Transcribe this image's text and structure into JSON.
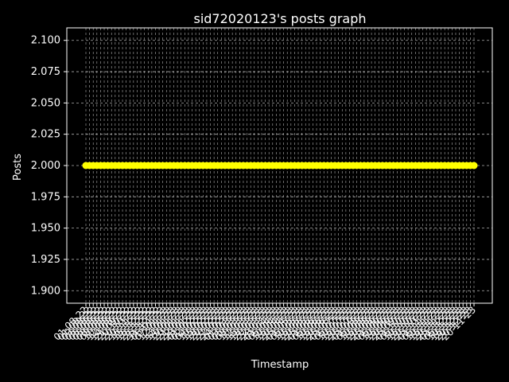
{
  "chart_data": {
    "type": "line",
    "title": "sid72020123's posts graph",
    "xlabel": "Timestamp",
    "ylabel": "Posts",
    "ylim": [
      1.89,
      2.11
    ],
    "yticks": [
      "1.900",
      "1.925",
      "1.950",
      "1.975",
      "2.000",
      "2.025",
      "2.050",
      "2.075",
      "2.100"
    ],
    "grid": true,
    "colors": {
      "background": "#000000",
      "foreground": "#ffffff",
      "grid": "#b0b0b0",
      "series": "#ffff00"
    },
    "x": [
      "01-08-22",
      "01-08-22",
      "03-08-22",
      "05-08-22",
      "05-08-22",
      "05-08-22",
      "08-08-22",
      "08-08-22",
      "10-08-22",
      "12-08-22",
      "14-08-22",
      "21-09-22",
      "20-10-22",
      "20-10-22",
      "20-11-22",
      "16-11-22",
      "15-12-22",
      "15-12-22",
      "25-12-22",
      "25-12-22",
      "31-12-22",
      "05-01-23",
      "07-01-23",
      "12-01-23",
      "13-01-23",
      "14-01-23",
      "19-01-23",
      "20-01-23",
      "21-01-23",
      "22-01-23",
      "28-01-23",
      "01-02-23",
      "02-02-23",
      "04-02-23",
      "10-02-23",
      "15-02-23",
      "18-02-23",
      "20-02-23",
      "20-02-23",
      "22-02-23",
      "24-02-23",
      "01-03-23",
      "03-03-23",
      "05-03-23",
      "08-03-23",
      "10-03-23",
      "12-03-23",
      "15-03-23",
      "18-03-23",
      "20-03-23",
      "22-03-23",
      "28-03-23",
      "01-04-23",
      "05-04-23",
      "10-04-23",
      "15-04-23",
      "20-04-23",
      "25-04-23",
      "01-05-23",
      "05-05-23",
      "10-05-23",
      "15-05-23",
      "20-05-23",
      "25-05-23",
      "01-06-23",
      "05-06-23",
      "10-06-23",
      "15-06-23",
      "20-06-23",
      "25-06-23",
      "01-07-23",
      "05-07-23",
      "10-07-23",
      "15-07-23",
      "20-07-23",
      "25-07-23",
      "01-08-23",
      "05-08-23",
      "10-08-23",
      "15-08-23",
      "20-08-23",
      "25-08-23",
      "01-09-23",
      "05-09-23",
      "10-09-23",
      "15-09-23",
      "20-09-23",
      "25-09-23",
      "01-10-23",
      "05-10-23",
      "10-10-23",
      "15-10-23",
      "20-10-23",
      "25-10-23",
      "01-11-23",
      "05-11-23",
      "10-11-23",
      "15-11-23",
      "20-11-23",
      "25-11-23",
      "01-12-23",
      "05-12-23",
      "10-12-23",
      "15-12-23",
      "20-12-23",
      "20-12-23",
      "20-11-23"
    ],
    "series": [
      {
        "values_constant": 2
      }
    ]
  }
}
